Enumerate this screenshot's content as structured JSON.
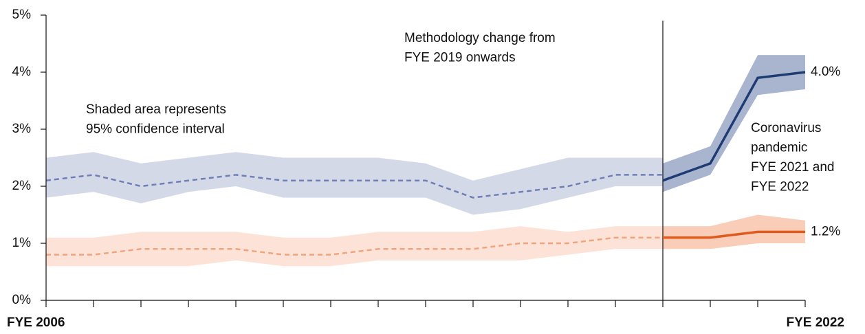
{
  "chart_data": {
    "type": "line",
    "categories": [
      "FYE 2006",
      null,
      null,
      null,
      null,
      null,
      null,
      null,
      null,
      null,
      null,
      null,
      null,
      null,
      null,
      null,
      "FYE 2022"
    ],
    "ylim": [
      0,
      5
    ],
    "yticks": [
      {
        "value": 0,
        "label": "0%"
      },
      {
        "value": 1,
        "label": "1%"
      },
      {
        "value": 2,
        "label": "2%"
      },
      {
        "value": 3,
        "label": "3%"
      },
      {
        "value": 4,
        "label": "4%"
      },
      {
        "value": 5,
        "label": "5%"
      }
    ],
    "series": [
      {
        "color": "#6f7fb5",
        "band_color": "#d4d9e8",
        "style": "dashed",
        "values": [
          2.1,
          2.2,
          2.0,
          2.1,
          2.2,
          2.1,
          2.1,
          2.1,
          2.1,
          1.8,
          1.9,
          2.0,
          2.2,
          2.2,
          null,
          null,
          null
        ],
        "lower": [
          1.8,
          1.9,
          1.7,
          1.9,
          2.0,
          1.8,
          1.8,
          1.8,
          1.8,
          1.5,
          1.6,
          1.8,
          2.0,
          2.0,
          null,
          null,
          null
        ],
        "upper": [
          2.5,
          2.6,
          2.4,
          2.5,
          2.6,
          2.5,
          2.5,
          2.5,
          2.4,
          2.1,
          2.3,
          2.5,
          2.5,
          2.5,
          null,
          null,
          null
        ]
      },
      {
        "color": "#1f3b73",
        "band_color": "#a9b5cf",
        "style": "solid",
        "values": [
          null,
          null,
          null,
          null,
          null,
          null,
          null,
          null,
          null,
          null,
          null,
          null,
          null,
          2.1,
          2.4,
          3.9,
          4.0
        ],
        "lower": [
          null,
          null,
          null,
          null,
          null,
          null,
          null,
          null,
          null,
          null,
          null,
          null,
          null,
          1.9,
          2.2,
          3.6,
          3.7
        ],
        "upper": [
          null,
          null,
          null,
          null,
          null,
          null,
          null,
          null,
          null,
          null,
          null,
          null,
          null,
          2.4,
          2.7,
          4.3,
          4.3
        ],
        "value_labels": [
          null,
          null,
          null,
          null,
          null,
          null,
          null,
          null,
          null,
          null,
          null,
          null,
          null,
          null,
          null,
          null,
          "4.0%"
        ]
      },
      {
        "color": "#f0a47e",
        "band_color": "#fde3d7",
        "style": "dashed",
        "values": [
          0.8,
          0.8,
          0.9,
          0.9,
          0.9,
          0.8,
          0.8,
          0.9,
          0.9,
          0.9,
          1.0,
          1.0,
          1.1,
          1.1,
          null,
          null,
          null
        ],
        "lower": [
          0.6,
          0.6,
          0.6,
          0.6,
          0.7,
          0.6,
          0.6,
          0.7,
          0.7,
          0.7,
          0.7,
          0.8,
          0.9,
          0.9,
          null,
          null,
          null
        ],
        "upper": [
          1.1,
          1.1,
          1.2,
          1.2,
          1.2,
          1.1,
          1.1,
          1.2,
          1.2,
          1.2,
          1.3,
          1.2,
          1.3,
          1.3,
          null,
          null,
          null
        ]
      },
      {
        "color": "#e05a1e",
        "band_color": "#f9cdb8",
        "style": "solid",
        "values": [
          null,
          null,
          null,
          null,
          null,
          null,
          null,
          null,
          null,
          null,
          null,
          null,
          null,
          1.1,
          1.1,
          1.2,
          1.2
        ],
        "lower": [
          null,
          null,
          null,
          null,
          null,
          null,
          null,
          null,
          null,
          null,
          null,
          null,
          null,
          0.9,
          0.9,
          1.0,
          1.0
        ],
        "upper": [
          null,
          null,
          null,
          null,
          null,
          null,
          null,
          null,
          null,
          null,
          null,
          null,
          null,
          1.3,
          1.3,
          1.5,
          1.4
        ],
        "value_labels": [
          null,
          null,
          null,
          null,
          null,
          null,
          null,
          null,
          null,
          null,
          null,
          null,
          null,
          null,
          null,
          null,
          "1.2%"
        ]
      }
    ],
    "annotations": [
      [
        "Shaded area represents",
        "95% confidence interval"
      ],
      [
        "Methodology change from",
        "FYE 2019 onwards"
      ],
      [
        "Coronavirus",
        "pandemic",
        "FYE 2021 and",
        "FYE 2022"
      ]
    ]
  }
}
